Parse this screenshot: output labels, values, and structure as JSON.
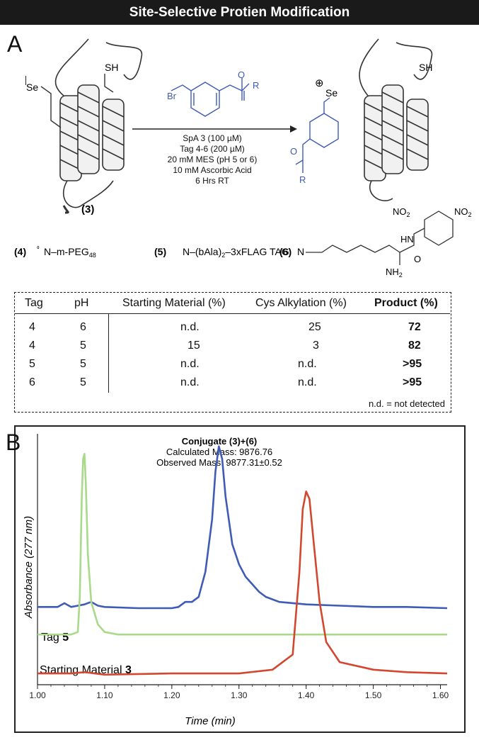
{
  "header": {
    "title": "Site-Selective Protien Modification"
  },
  "panel_a": {
    "letter": "A",
    "substrate_label": "(3)",
    "se_label": "Se",
    "sh_label": "SH",
    "reagent_br": "Br",
    "reagent_o": "O",
    "reagent_r": "R",
    "conditions": [
      "SpA 3 (100 µM)",
      "Tag 4-6 (200 µM)",
      "20 mM MES (pH 5 or 6)",
      "10 mM Ascorbic Acid",
      "6 Hrs RT"
    ],
    "product_charge": "⊕",
    "tag4": {
      "id": "(4)",
      "text": "N–m-PEG",
      "sub": "48"
    },
    "tag5": {
      "id": "(5)",
      "text": "N–(bAla)",
      "sub": "2",
      "tail": "–3xFLAG TAG"
    },
    "tag6": {
      "id": "(6)",
      "nh": "N",
      "hn": "HN",
      "nh2": "NH",
      "nh2_sub": "2",
      "o": "O",
      "no2": "NO",
      "no2_sub": "2"
    }
  },
  "table": {
    "headers": [
      "Tag",
      "pH",
      "Starting Material (%)",
      "Cys Alkylation (%)",
      "Product (%)"
    ],
    "rows": [
      [
        "4",
        "6",
        "n.d.",
        "25",
        "72"
      ],
      [
        "4",
        "5",
        "15",
        "3",
        "82"
      ],
      [
        "5",
        "5",
        "n.d.",
        "n.d.",
        ">95"
      ],
      [
        "6",
        "5",
        "n.d.",
        "n.d.",
        ">95"
      ]
    ],
    "footnote": "n.d. = not detected"
  },
  "panel_b": {
    "letter": "B",
    "annotation": {
      "title": "Conjugate (3)+(6)",
      "calc": "Calculated Mass: 9876.76",
      "obs": "Observed Mass: 9877.31±0.52"
    },
    "trace_labels": {
      "tag5_prefix": "Tag ",
      "tag5_num": "5",
      "sm_prefix": "Starting Material ",
      "sm_num": "3"
    }
  },
  "chart_data": {
    "type": "line",
    "xlabel": "Time (min)",
    "ylabel": "Absorbance (277 nm)",
    "xlim": [
      1.0,
      1.61
    ],
    "ylim": [
      0,
      1.0
    ],
    "x_ticks": [
      "1.00",
      "1.10",
      "1.20",
      "1.30",
      "1.40",
      "1.50",
      "1.60"
    ],
    "grid": false,
    "colors": {
      "blue": "#3f5bb5",
      "green": "#a9d98a",
      "red": "#d2482e"
    },
    "series": [
      {
        "key": "blue",
        "x": [
          1.0,
          1.03,
          1.04,
          1.05,
          1.06,
          1.07,
          1.08,
          1.09,
          1.1,
          1.15,
          1.2,
          1.21,
          1.22,
          1.23,
          1.24,
          1.25,
          1.26,
          1.265,
          1.27,
          1.275,
          1.28,
          1.29,
          1.3,
          1.31,
          1.32,
          1.33,
          1.34,
          1.35,
          1.36,
          1.4,
          1.45,
          1.5,
          1.55,
          1.61
        ],
        "y": [
          0.31,
          0.31,
          0.325,
          0.31,
          0.315,
          0.32,
          0.33,
          0.315,
          0.31,
          0.305,
          0.305,
          0.31,
          0.33,
          0.33,
          0.35,
          0.45,
          0.66,
          0.85,
          0.95,
          0.9,
          0.75,
          0.56,
          0.48,
          0.43,
          0.4,
          0.37,
          0.35,
          0.34,
          0.33,
          0.32,
          0.315,
          0.31,
          0.31,
          0.305
        ]
      },
      {
        "key": "green",
        "x": [
          1.0,
          1.05,
          1.06,
          1.063,
          1.066,
          1.068,
          1.07,
          1.072,
          1.075,
          1.08,
          1.09,
          1.1,
          1.12,
          1.2,
          1.3,
          1.4,
          1.5,
          1.61
        ],
        "y": [
          0.2,
          0.2,
          0.21,
          0.35,
          0.75,
          0.9,
          0.92,
          0.8,
          0.52,
          0.33,
          0.24,
          0.21,
          0.2,
          0.2,
          0.2,
          0.2,
          0.2,
          0.2
        ]
      },
      {
        "key": "red",
        "x": [
          1.0,
          1.05,
          1.07,
          1.1,
          1.2,
          1.3,
          1.35,
          1.36,
          1.37,
          1.38,
          1.39,
          1.395,
          1.4,
          1.405,
          1.41,
          1.42,
          1.43,
          1.45,
          1.5,
          1.55,
          1.61
        ],
        "y": [
          0.045,
          0.045,
          0.05,
          0.04,
          0.045,
          0.045,
          0.06,
          0.08,
          0.1,
          0.12,
          0.45,
          0.7,
          0.77,
          0.74,
          0.6,
          0.33,
          0.17,
          0.09,
          0.06,
          0.05,
          0.045
        ]
      }
    ]
  }
}
